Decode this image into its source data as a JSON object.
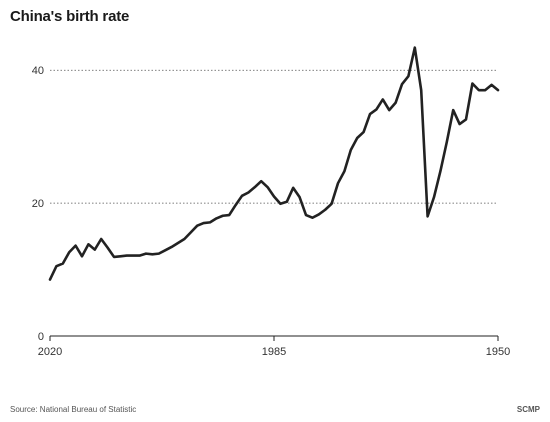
{
  "chart_data": {
    "type": "line",
    "title": "China's birth rate",
    "xlabel": "",
    "ylabel": "",
    "x_direction": "descending",
    "xlim": [
      2020,
      1950
    ],
    "ylim": [
      0,
      45
    ],
    "yticks": [
      0,
      20,
      40
    ],
    "xticks": [
      2020,
      1985,
      1950
    ],
    "grid": "horizontal-dotted",
    "series": [
      {
        "color": "#222222",
        "x": [
          2020,
          2019,
          2018,
          2017,
          2016,
          2015,
          2014,
          2013,
          2012,
          2011,
          2010,
          2009,
          2008,
          2007,
          2006,
          2005,
          2004,
          2003,
          2002,
          2001,
          2000,
          1999,
          1998,
          1997,
          1996,
          1995,
          1994,
          1993,
          1992,
          1991,
          1990,
          1989,
          1988,
          1987,
          1986,
          1985,
          1984,
          1983,
          1982,
          1981,
          1980,
          1979,
          1978,
          1977,
          1976,
          1975,
          1974,
          1973,
          1972,
          1971,
          1970,
          1969,
          1968,
          1967,
          1966,
          1965,
          1964,
          1963,
          1962,
          1961,
          1960,
          1959,
          1958,
          1957,
          1956,
          1955,
          1954,
          1953,
          1952,
          1951,
          1950
        ],
        "values": [
          8.5,
          10.5,
          10.9,
          12.6,
          13.6,
          12.0,
          13.8,
          13.0,
          14.6,
          13.3,
          11.9,
          12.0,
          12.1,
          12.1,
          12.1,
          12.4,
          12.3,
          12.4,
          12.9,
          13.4,
          14.0,
          14.6,
          15.6,
          16.6,
          17.0,
          17.1,
          17.7,
          18.1,
          18.2,
          19.7,
          21.1,
          21.6,
          22.4,
          23.3,
          22.4,
          21.0,
          19.9,
          20.2,
          22.3,
          20.9,
          18.2,
          17.8,
          18.3,
          19.0,
          19.9,
          23.0,
          24.8,
          28.0,
          29.8,
          30.7,
          33.4,
          34.1,
          35.6,
          34.0,
          35.1,
          37.9,
          39.1,
          43.4,
          37.0,
          18.0,
          20.9,
          24.8,
          29.2,
          34.0,
          31.9,
          32.6,
          38.0,
          37.0,
          37.0,
          37.8,
          37.0
        ]
      }
    ]
  },
  "labels": {
    "title": "China's birth rate",
    "source": "Source: National Bureau of Statistic",
    "brand": "SCMP",
    "ytick_labels": [
      "0",
      "20",
      "40"
    ],
    "xtick_labels": [
      "2020",
      "1985",
      "1950"
    ]
  },
  "colors": {
    "line": "#222222",
    "grid": "#555555",
    "axis": "#222222"
  }
}
